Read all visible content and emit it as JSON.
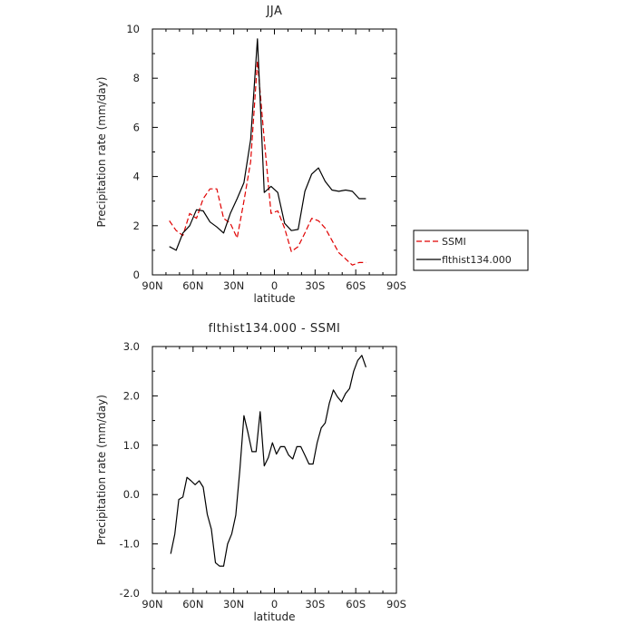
{
  "chart_data": [
    {
      "type": "line",
      "title": "JJA",
      "xlabel": "latitude",
      "ylabel": "Precipitation rate (mm/day)",
      "x_ticks": [
        "90N",
        "60N",
        "30N",
        "0",
        "30S",
        "60S",
        "90S"
      ],
      "x_tick_values": [
        90,
        60,
        30,
        0,
        -30,
        -60,
        -90
      ],
      "xlim": [
        90,
        -90
      ],
      "y_ticks": [
        "0",
        "2",
        "4",
        "6",
        "8",
        "10"
      ],
      "y_tick_values": [
        0,
        2,
        4,
        6,
        8,
        10
      ],
      "ylim": [
        0,
        10
      ],
      "legend_position": "right",
      "series": [
        {
          "name": "SSMI",
          "color": "#e00000",
          "dash": "dashed",
          "x": [
            77.5,
            72.5,
            67.5,
            62.5,
            57.5,
            52.5,
            47.5,
            42.5,
            37.5,
            32.5,
            27.5,
            22.5,
            17.5,
            12.5,
            7.5,
            2.5,
            -2.5,
            -7.5,
            -12.5,
            -17.5,
            -22.5,
            -27.5,
            -32.5,
            -37.5,
            -42.5,
            -47.5,
            -52.5,
            -57.5,
            -62.5,
            -67.5
          ],
          "y": [
            2.2,
            1.8,
            1.6,
            2.5,
            2.3,
            3.1,
            3.5,
            3.5,
            2.3,
            2.1,
            1.5,
            3.0,
            4.6,
            8.7,
            5.5,
            2.5,
            2.6,
            1.9,
            0.95,
            1.15,
            1.7,
            2.3,
            2.2,
            1.9,
            1.4,
            0.9,
            0.65,
            0.4,
            0.5,
            0.5
          ]
        },
        {
          "name": "flthist134.000",
          "color": "#000000",
          "dash": "solid",
          "x": [
            77.5,
            72.5,
            67.5,
            62.5,
            57.5,
            52.5,
            47.5,
            42.5,
            37.5,
            32.5,
            27.5,
            22.5,
            17.5,
            12.5,
            7.5,
            2.5,
            -2.5,
            -7.5,
            -12.5,
            -17.5,
            -22.5,
            -27.5,
            -32.5,
            -37.5,
            -42.5,
            -47.5,
            -52.5,
            -57.5,
            -62.5,
            -67.5
          ],
          "y": [
            1.15,
            1.0,
            1.7,
            2.0,
            2.65,
            2.6,
            2.15,
            1.95,
            1.7,
            2.5,
            3.1,
            3.75,
            5.5,
            9.6,
            3.35,
            3.6,
            3.35,
            2.1,
            1.8,
            1.85,
            3.4,
            4.1,
            4.35,
            3.8,
            3.45,
            3.4,
            3.45,
            3.4,
            3.1,
            3.1
          ]
        }
      ]
    },
    {
      "type": "line",
      "title": "flthist134.000 - SSMI",
      "xlabel": "latitude",
      "ylabel": "Precipitation rate (mm/day)",
      "x_ticks": [
        "90N",
        "60N",
        "30N",
        "0",
        "30S",
        "60S",
        "90S"
      ],
      "x_tick_values": [
        90,
        60,
        30,
        0,
        -30,
        -60,
        -90
      ],
      "xlim": [
        90,
        -90
      ],
      "y_ticks": [
        "-2.0",
        "-1.0",
        "0.0",
        "1.0",
        "2.0",
        "3.0"
      ],
      "y_tick_values": [
        -2,
        -1,
        0,
        1,
        2,
        3
      ],
      "ylim": [
        -2,
        3
      ],
      "series": [
        {
          "color": "#000000",
          "dash": "solid",
          "x": [
            76.5,
            73.5,
            70.5,
            67.5,
            64.5,
            61.5,
            58.5,
            55.5,
            52.5,
            49.5,
            46.5,
            43.5,
            40.5,
            37.5,
            34.5,
            31.5,
            28.5,
            25.5,
            22.5,
            19.5,
            16.5,
            13.5,
            10.5,
            7.5,
            4.5,
            1.5,
            -1.5,
            -4.5,
            -7.5,
            -10.5,
            -13.5,
            -16.5,
            -19.5,
            -22.5,
            -25.5,
            -28.5,
            -31.5,
            -34.5,
            -37.5,
            -40.5,
            -43.5,
            -46.5,
            -49.5,
            -52.5,
            -55.5,
            -58.5,
            -61.5,
            -64.5,
            -67.5
          ],
          "y": [
            -1.2,
            -0.8,
            -0.1,
            -0.05,
            0.35,
            0.28,
            0.2,
            0.28,
            0.15,
            -0.4,
            -0.7,
            -1.38,
            -1.45,
            -1.45,
            -1.0,
            -0.8,
            -0.42,
            0.5,
            1.6,
            1.25,
            0.87,
            0.87,
            1.68,
            0.58,
            0.75,
            1.05,
            0.82,
            0.97,
            0.97,
            0.8,
            0.72,
            0.97,
            0.97,
            0.8,
            0.62,
            0.62,
            1.05,
            1.35,
            1.45,
            1.85,
            2.12,
            1.98,
            1.88,
            2.05,
            2.15,
            2.5,
            2.72,
            2.82,
            2.58
          ]
        }
      ]
    }
  ]
}
